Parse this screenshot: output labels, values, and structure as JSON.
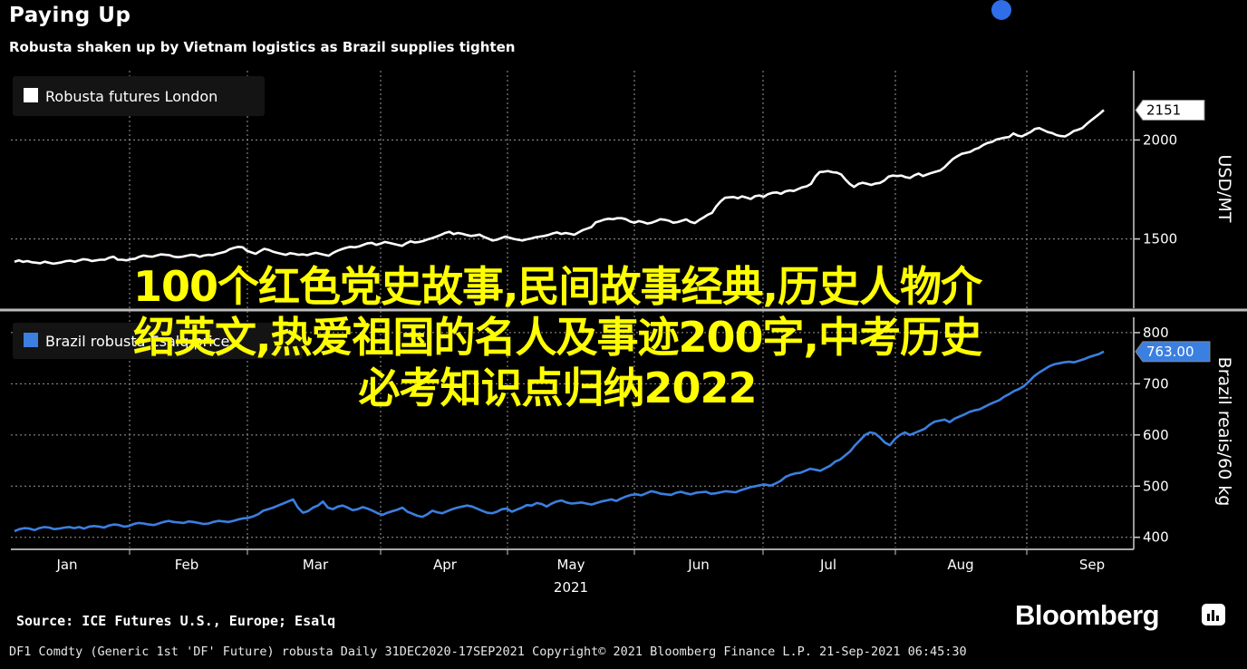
{
  "title": "Paying Up",
  "subtitle": "Robusta shaken up by Vietnam logistics as Brazil supplies tighten",
  "source": "Source: ICE Futures U.S., Europe; Esalq",
  "footer": "DF1 Comdty (Generic 1st 'DF' Future) robusta  Daily 31DEC2020-17SEP2021  Copyright© 2021 Bloomberg Finance L.P.  21-Sep-2021 06:45:30",
  "brand": "Bloomberg",
  "overlay_lines": [
    "100个红色党史故事,民间故事经典,历史人物介",
    "绍英文,热爱祖国的名人及事迹200字,中考历史",
    "必考知识点归纳2022"
  ],
  "colors": {
    "background": "#000000",
    "robusta_line": "#ffffff",
    "brazil_line": "#3b7fe0",
    "overlay_text": "#ffff00"
  },
  "icons": [
    "bloomberg-terminal-icon"
  ],
  "chart_data": [
    {
      "type": "line",
      "title": "Paying Up",
      "legend": "top-left",
      "ylabel": "USD/MT",
      "ylim": [
        1150,
        2350
      ],
      "yticks": [
        1500,
        2000
      ],
      "last_value_label": "2151",
      "grid": true,
      "series": [
        {
          "name": "Robusta futures London",
          "color": "#ffffff",
          "values": [
            1385,
            1392,
            1384,
            1388,
            1382,
            1380,
            1377,
            1385,
            1380,
            1375,
            1378,
            1382,
            1388,
            1390,
            1385,
            1392,
            1398,
            1395,
            1388,
            1392,
            1395,
            1395,
            1405,
            1410,
            1395,
            1395,
            1392,
            1398,
            1400,
            1410,
            1416,
            1412,
            1410,
            1416,
            1422,
            1420,
            1418,
            1410,
            1408,
            1410,
            1415,
            1420,
            1418,
            1410,
            1416,
            1420,
            1418,
            1425,
            1430,
            1436,
            1448,
            1455,
            1460,
            1458,
            1440,
            1432,
            1425,
            1438,
            1450,
            1445,
            1436,
            1430,
            1425,
            1420,
            1428,
            1425,
            1420,
            1422,
            1418,
            1425,
            1430,
            1425,
            1420,
            1415,
            1430,
            1440,
            1448,
            1455,
            1460,
            1458,
            1462,
            1470,
            1478,
            1480,
            1470,
            1476,
            1485,
            1480,
            1475,
            1470,
            1465,
            1478,
            1488,
            1482,
            1485,
            1490,
            1498,
            1504,
            1512,
            1520,
            1530,
            1536,
            1524,
            1530,
            1526,
            1520,
            1515,
            1518,
            1522,
            1510,
            1502,
            1492,
            1496,
            1504,
            1512,
            1506,
            1500,
            1496,
            1492,
            1498,
            1502,
            1508,
            1512,
            1515,
            1520,
            1528,
            1533,
            1525,
            1530,
            1526,
            1521,
            1533,
            1545,
            1552,
            1560,
            1584,
            1590,
            1598,
            1602,
            1600,
            1605,
            1605,
            1600,
            1588,
            1582,
            1590,
            1585,
            1578,
            1582,
            1590,
            1600,
            1597,
            1592,
            1582,
            1585,
            1592,
            1599,
            1586,
            1580,
            1595,
            1608,
            1622,
            1632,
            1665,
            1690,
            1708,
            1710,
            1712,
            1705,
            1715,
            1709,
            1702,
            1716,
            1720,
            1713,
            1726,
            1733,
            1735,
            1728,
            1740,
            1745,
            1742,
            1752,
            1761,
            1766,
            1778,
            1815,
            1838,
            1840,
            1843,
            1837,
            1835,
            1826,
            1800,
            1778,
            1763,
            1778,
            1784,
            1779,
            1773,
            1780,
            1783,
            1795,
            1815,
            1820,
            1818,
            1820,
            1812,
            1808,
            1822,
            1830,
            1818,
            1826,
            1834,
            1840,
            1846,
            1862,
            1884,
            1905,
            1918,
            1930,
            1935,
            1940,
            1953,
            1960,
            1975,
            1985,
            1990,
            2002,
            2007,
            2012,
            2015,
            2033,
            2022,
            2018,
            2030,
            2040,
            2056,
            2060,
            2050,
            2040,
            2035,
            2025,
            2020,
            2018,
            2030,
            2045,
            2052,
            2060,
            2080,
            2098,
            2115,
            2132,
            2151
          ]
        }
      ]
    },
    {
      "type": "line",
      "ylabel": "Brazil reais/60 kg",
      "ylim": [
        380,
        830
      ],
      "yticks": [
        400,
        500,
        600,
        700,
        800
      ],
      "last_value_label": "763.00",
      "grid": true,
      "series": [
        {
          "name": "Brazil robusta Esalq price",
          "color": "#3b7fe0",
          "values": [
            412,
            416,
            418,
            417,
            414,
            418,
            420,
            419,
            416,
            417,
            419,
            420,
            418,
            420,
            417,
            421,
            422,
            421,
            419,
            423,
            425,
            424,
            421,
            422,
            426,
            428,
            427,
            425,
            424,
            427,
            430,
            432,
            430,
            429,
            428,
            431,
            430,
            428,
            426,
            427,
            430,
            432,
            431,
            430,
            432,
            435,
            437,
            438,
            441,
            445,
            452,
            455,
            458,
            462,
            466,
            470,
            474,
            458,
            448,
            451,
            458,
            462,
            470,
            458,
            455,
            460,
            462,
            458,
            453,
            455,
            459,
            456,
            452,
            447,
            444,
            448,
            451,
            454,
            458,
            450,
            446,
            442,
            440,
            445,
            452,
            449,
            447,
            451,
            455,
            458,
            460,
            462,
            460,
            456,
            452,
            448,
            447,
            450,
            455,
            456,
            450,
            454,
            458,
            463,
            462,
            467,
            465,
            460,
            466,
            470,
            472,
            468,
            466,
            467,
            468,
            466,
            464,
            467,
            470,
            472,
            474,
            471,
            476,
            480,
            483,
            484,
            482,
            486,
            490,
            488,
            485,
            484,
            483,
            487,
            489,
            486,
            484,
            487,
            488,
            489,
            485,
            486,
            488,
            490,
            489,
            488,
            492,
            495,
            498,
            500,
            502,
            503,
            501,
            505,
            510,
            518,
            522,
            525,
            526,
            530,
            534,
            532,
            530,
            535,
            540,
            548,
            552,
            560,
            568,
            580,
            590,
            600,
            605,
            603,
            595,
            585,
            580,
            592,
            600,
            605,
            600,
            604,
            608,
            612,
            620,
            626,
            628,
            630,
            625,
            632,
            636,
            640,
            645,
            648,
            650,
            655,
            660,
            664,
            668,
            675,
            680,
            686,
            690,
            696,
            705,
            715,
            722,
            728,
            734,
            738,
            740,
            742,
            743,
            742,
            745,
            748,
            752,
            755,
            758,
            763
          ]
        }
      ]
    }
  ],
  "x_axis": {
    "ticks": [
      "Jan",
      "Feb",
      "Mar",
      "Apr",
      "May",
      "Jun",
      "Jul",
      "Aug",
      "Sep"
    ],
    "year": "2021"
  }
}
